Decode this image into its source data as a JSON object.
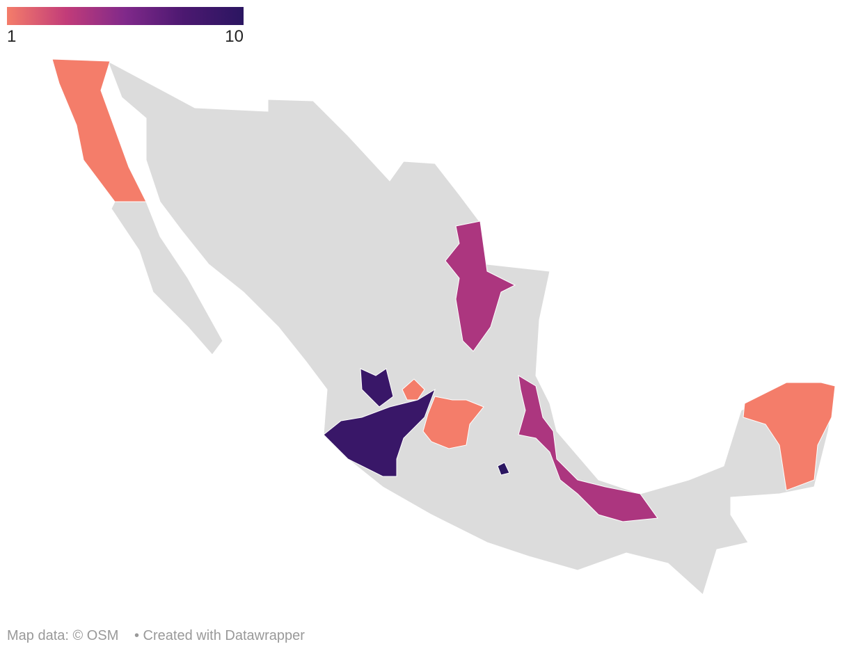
{
  "legend": {
    "min": 1,
    "max": 10,
    "colors": [
      "#f47d6a",
      "#c23c79",
      "#80298a",
      "#4b1870",
      "#2b1661"
    ]
  },
  "regions": [
    {
      "value": 1
    },
    {
      "value": 4
    },
    {
      "value": 4
    },
    {
      "value": 9
    },
    {
      "value": 9
    },
    {
      "value": 1
    },
    {
      "value": 1
    },
    {
      "value": 10
    },
    {
      "value": 1
    }
  ],
  "footer": {
    "source": "Map data: © OSM",
    "credit": "• Created with Datawrapper"
  }
}
